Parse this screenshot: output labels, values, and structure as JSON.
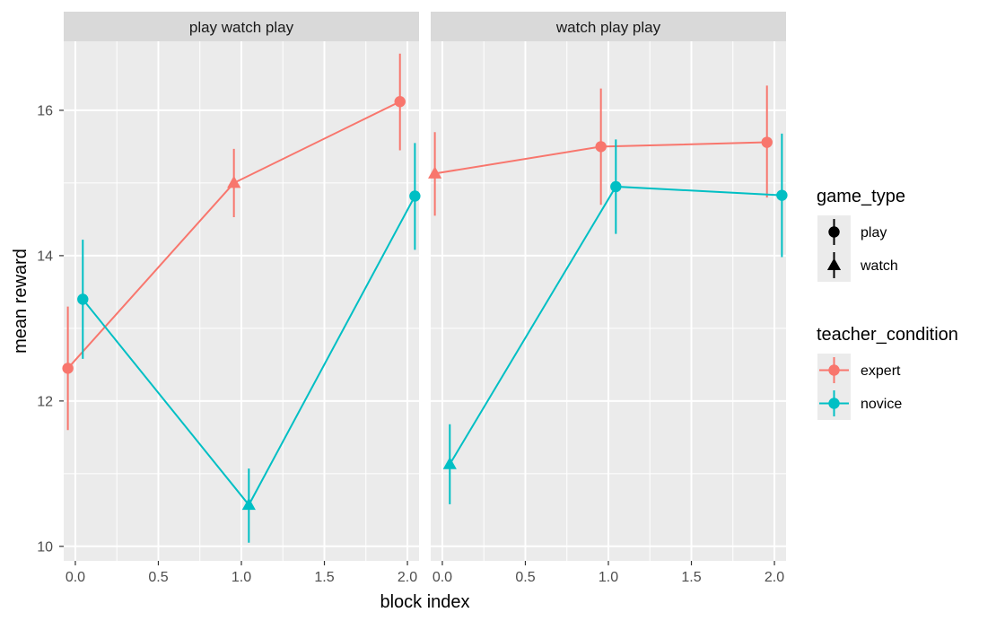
{
  "chart_data": {
    "type": "line",
    "xlabel": "block index",
    "ylabel": "mean reward",
    "x_ticks": [
      "0.0",
      "0.5",
      "1.0",
      "1.5",
      "2.0"
    ],
    "y_ticks": [
      "10",
      "12",
      "14",
      "16"
    ],
    "xlim": [
      -0.07,
      2.07
    ],
    "ylim": [
      9.8,
      16.95
    ],
    "grid": true,
    "legend_placement": "right",
    "colors": {
      "expert": "#F8766D",
      "novice": "#00BFC4",
      "panel_bg": "#EBEBEB",
      "strip_bg": "#D9D9D9",
      "grid": "#FFFFFF"
    },
    "panels": [
      {
        "title": "play watch play",
        "series": [
          {
            "name": "expert",
            "color": "#F8766D",
            "points": [
              {
                "x": 0,
                "y": 12.45,
                "lo": 11.6,
                "hi": 13.3,
                "game_type": "play"
              },
              {
                "x": 1,
                "y": 15.0,
                "lo": 14.53,
                "hi": 15.47,
                "game_type": "watch"
              },
              {
                "x": 2,
                "y": 16.12,
                "lo": 15.45,
                "hi": 16.78,
                "game_type": "play"
              }
            ]
          },
          {
            "name": "novice",
            "color": "#00BFC4",
            "points": [
              {
                "x": 0,
                "y": 13.4,
                "lo": 12.58,
                "hi": 14.22,
                "game_type": "play"
              },
              {
                "x": 1,
                "y": 10.57,
                "lo": 10.05,
                "hi": 11.07,
                "game_type": "watch"
              },
              {
                "x": 2,
                "y": 14.82,
                "lo": 14.08,
                "hi": 15.55,
                "game_type": "play"
              }
            ]
          }
        ]
      },
      {
        "title": "watch play play",
        "series": [
          {
            "name": "expert",
            "color": "#F8766D",
            "points": [
              {
                "x": 0,
                "y": 15.13,
                "lo": 14.55,
                "hi": 15.7,
                "game_type": "watch"
              },
              {
                "x": 1,
                "y": 15.5,
                "lo": 14.7,
                "hi": 16.3,
                "game_type": "play"
              },
              {
                "x": 2,
                "y": 15.56,
                "lo": 14.8,
                "hi": 16.34,
                "game_type": "play"
              }
            ]
          },
          {
            "name": "novice",
            "color": "#00BFC4",
            "points": [
              {
                "x": 0,
                "y": 11.13,
                "lo": 10.58,
                "hi": 11.68,
                "game_type": "watch"
              },
              {
                "x": 1,
                "y": 14.95,
                "lo": 14.3,
                "hi": 15.6,
                "game_type": "play"
              },
              {
                "x": 2,
                "y": 14.83,
                "lo": 13.98,
                "hi": 15.68,
                "game_type": "play"
              }
            ]
          }
        ]
      }
    ],
    "legends": [
      {
        "title": "game_type",
        "items": [
          {
            "label": "play",
            "shape": "circle"
          },
          {
            "label": "watch",
            "shape": "triangle"
          }
        ]
      },
      {
        "title": "teacher_condition",
        "items": [
          {
            "label": "expert",
            "color": "#F8766D"
          },
          {
            "label": "novice",
            "color": "#00BFC4"
          }
        ]
      }
    ]
  }
}
